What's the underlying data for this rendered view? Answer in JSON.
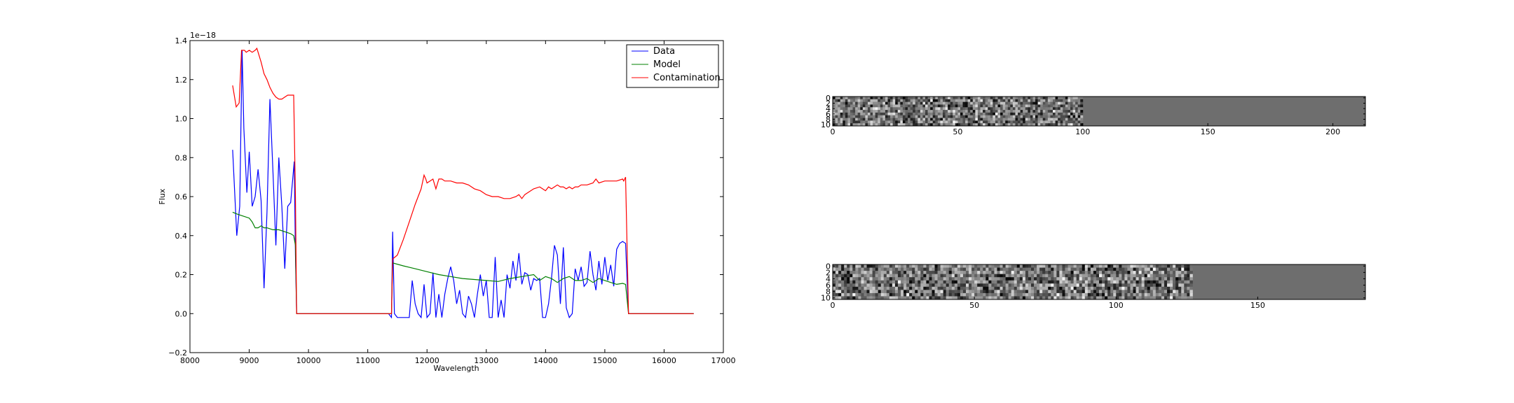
{
  "chart_data": [
    {
      "type": "line",
      "title": "",
      "xlabel": "Wavelength",
      "ylabel": "Flux",
      "y_offset_label": "1e−18",
      "xlim": [
        8000,
        17000
      ],
      "ylim": [
        -0.2,
        1.4
      ],
      "xticks": [
        8000,
        9000,
        10000,
        11000,
        12000,
        13000,
        14000,
        15000,
        16000,
        17000
      ],
      "yticks": [
        -0.2,
        0.0,
        0.2,
        0.4,
        0.6,
        0.8,
        1.0,
        1.2,
        1.4
      ],
      "grid": false,
      "legend_position": "top-right",
      "series": [
        {
          "name": "Data",
          "color": "#0000ff",
          "x": [
            8720,
            8790,
            8840,
            8880,
            8910,
            8960,
            9000,
            9050,
            9100,
            9150,
            9200,
            9250,
            9300,
            9350,
            9400,
            9450,
            9500,
            9550,
            9600,
            9650,
            9700,
            9760,
            9780,
            9800,
            11350,
            11400,
            11420,
            11450,
            11500,
            11600,
            11700,
            11750,
            11800,
            11850,
            11900,
            11950,
            12000,
            12050,
            12100,
            12150,
            12200,
            12250,
            12300,
            12350,
            12400,
            12450,
            12500,
            12550,
            12600,
            12650,
            12700,
            12750,
            12800,
            12850,
            12900,
            12950,
            13000,
            13050,
            13100,
            13150,
            13200,
            13250,
            13300,
            13350,
            13400,
            13450,
            13500,
            13550,
            13600,
            13650,
            13700,
            13750,
            13800,
            13850,
            13900,
            13950,
            14000,
            14050,
            14100,
            14150,
            14200,
            14250,
            14300,
            14350,
            14400,
            14450,
            14500,
            14550,
            14600,
            14650,
            14700,
            14750,
            14800,
            14850,
            14900,
            14950,
            15000,
            15050,
            15100,
            15150,
            15200,
            15250,
            15300,
            15350,
            15400,
            15450,
            16000,
            16500
          ],
          "y": [
            0.84,
            0.4,
            0.55,
            1.35,
            0.95,
            0.62,
            0.83,
            0.55,
            0.6,
            0.74,
            0.58,
            0.13,
            0.52,
            1.1,
            0.73,
            0.35,
            0.8,
            0.55,
            0.23,
            0.55,
            0.57,
            0.78,
            0.3,
            0.0,
            0.0,
            -0.02,
            0.42,
            0.0,
            -0.02,
            -0.02,
            -0.02,
            0.17,
            0.05,
            0.0,
            -0.02,
            0.15,
            -0.02,
            0.0,
            0.21,
            -0.02,
            0.1,
            -0.02,
            0.1,
            0.18,
            0.24,
            0.17,
            0.05,
            0.12,
            0.0,
            -0.02,
            0.09,
            0.05,
            -0.02,
            0.1,
            0.2,
            0.09,
            0.17,
            -0.02,
            -0.02,
            0.29,
            -0.02,
            0.07,
            -0.02,
            0.2,
            0.13,
            0.27,
            0.17,
            0.31,
            0.15,
            0.21,
            0.2,
            0.12,
            0.18,
            0.17,
            0.18,
            -0.02,
            -0.02,
            0.05,
            0.18,
            0.35,
            0.3,
            0.05,
            0.34,
            0.03,
            -0.02,
            0.0,
            0.23,
            0.17,
            0.24,
            0.14,
            0.16,
            0.32,
            0.2,
            0.12,
            0.27,
            0.15,
            0.29,
            0.17,
            0.25,
            0.14,
            0.33,
            0.36,
            0.37,
            0.36,
            0.0,
            0.0,
            0.0,
            0.0
          ]
        },
        {
          "name": "Model",
          "color": "#008000",
          "x": [
            8720,
            8800,
            8900,
            9000,
            9050,
            9100,
            9150,
            9200,
            9250,
            9300,
            9400,
            9500,
            9600,
            9700,
            9750,
            9780,
            9800,
            11350,
            11400,
            11420,
            11600,
            11800,
            12000,
            12200,
            12400,
            12600,
            12800,
            13000,
            13200,
            13400,
            13600,
            13800,
            13900,
            14000,
            14100,
            14200,
            14300,
            14400,
            14500,
            14600,
            14700,
            14800,
            14900,
            15000,
            15100,
            15200,
            15300,
            15350,
            15400,
            15450,
            16000,
            16500
          ],
          "y": [
            0.52,
            0.51,
            0.5,
            0.49,
            0.47,
            0.44,
            0.44,
            0.45,
            0.44,
            0.44,
            0.43,
            0.43,
            0.42,
            0.41,
            0.4,
            0.35,
            0.0,
            0.0,
            0.0,
            0.26,
            0.245,
            0.23,
            0.215,
            0.2,
            0.19,
            0.18,
            0.175,
            0.17,
            0.165,
            0.18,
            0.19,
            0.2,
            0.17,
            0.19,
            0.18,
            0.16,
            0.18,
            0.19,
            0.17,
            0.17,
            0.18,
            0.16,
            0.18,
            0.17,
            0.16,
            0.15,
            0.155,
            0.15,
            0.0,
            0.0,
            0.0,
            0.0
          ]
        },
        {
          "name": "Contamination",
          "color": "#ff0000",
          "x": [
            8720,
            8780,
            8830,
            8870,
            8890,
            8920,
            8950,
            9000,
            9050,
            9100,
            9130,
            9150,
            9200,
            9250,
            9300,
            9350,
            9400,
            9450,
            9500,
            9550,
            9600,
            9650,
            9700,
            9750,
            9780,
            9800,
            11350,
            11400,
            11420,
            11500,
            11600,
            11700,
            11800,
            11900,
            11950,
            11980,
            12000,
            12050,
            12100,
            12150,
            12200,
            12250,
            12300,
            12400,
            12500,
            12600,
            12700,
            12800,
            12900,
            13000,
            13100,
            13200,
            13300,
            13400,
            13500,
            13550,
            13600,
            13650,
            13700,
            13800,
            13900,
            13950,
            14000,
            14050,
            14100,
            14150,
            14200,
            14250,
            14300,
            14350,
            14400,
            14450,
            14500,
            14550,
            14600,
            14700,
            14800,
            14850,
            14900,
            15000,
            15100,
            15200,
            15300,
            15320,
            15350,
            15400,
            15450,
            16000,
            16500
          ],
          "y": [
            1.17,
            1.06,
            1.08,
            1.35,
            1.35,
            1.35,
            1.34,
            1.35,
            1.34,
            1.35,
            1.36,
            1.34,
            1.29,
            1.23,
            1.2,
            1.16,
            1.13,
            1.11,
            1.1,
            1.1,
            1.11,
            1.12,
            1.12,
            1.12,
            0.6,
            0.0,
            0.0,
            0.0,
            0.28,
            0.3,
            0.38,
            0.47,
            0.56,
            0.64,
            0.71,
            0.69,
            0.67,
            0.68,
            0.69,
            0.64,
            0.69,
            0.69,
            0.68,
            0.68,
            0.67,
            0.67,
            0.66,
            0.64,
            0.63,
            0.61,
            0.6,
            0.6,
            0.59,
            0.59,
            0.6,
            0.61,
            0.59,
            0.61,
            0.62,
            0.64,
            0.65,
            0.64,
            0.63,
            0.65,
            0.64,
            0.65,
            0.66,
            0.65,
            0.65,
            0.64,
            0.65,
            0.64,
            0.65,
            0.65,
            0.66,
            0.66,
            0.67,
            0.69,
            0.67,
            0.68,
            0.68,
            0.68,
            0.69,
            0.68,
            0.7,
            0.0,
            0.0,
            0.0,
            0.0
          ]
        }
      ]
    },
    {
      "type": "heatmap",
      "title": "",
      "xlim": [
        0,
        213
      ],
      "ylim": [
        0,
        10
      ],
      "xticks": [
        0,
        50,
        100,
        150,
        200
      ],
      "yticks": [
        0,
        2,
        4,
        6,
        8,
        10
      ],
      "ytick_labels": [
        "0",
        "2",
        "4",
        "6",
        "8",
        "10"
      ],
      "noise_extent_x": 100,
      "colormap": "gray"
    },
    {
      "type": "heatmap",
      "title": "",
      "xlim": [
        0,
        188
      ],
      "ylim": [
        0,
        10
      ],
      "xticks": [
        0,
        50,
        100,
        150
      ],
      "yticks": [
        0,
        2,
        4,
        6,
        8,
        10
      ],
      "ytick_labels": [
        "0",
        "2",
        "4",
        "6",
        "8",
        "10"
      ],
      "noise_extent_x": 127,
      "colormap": "gray"
    }
  ]
}
